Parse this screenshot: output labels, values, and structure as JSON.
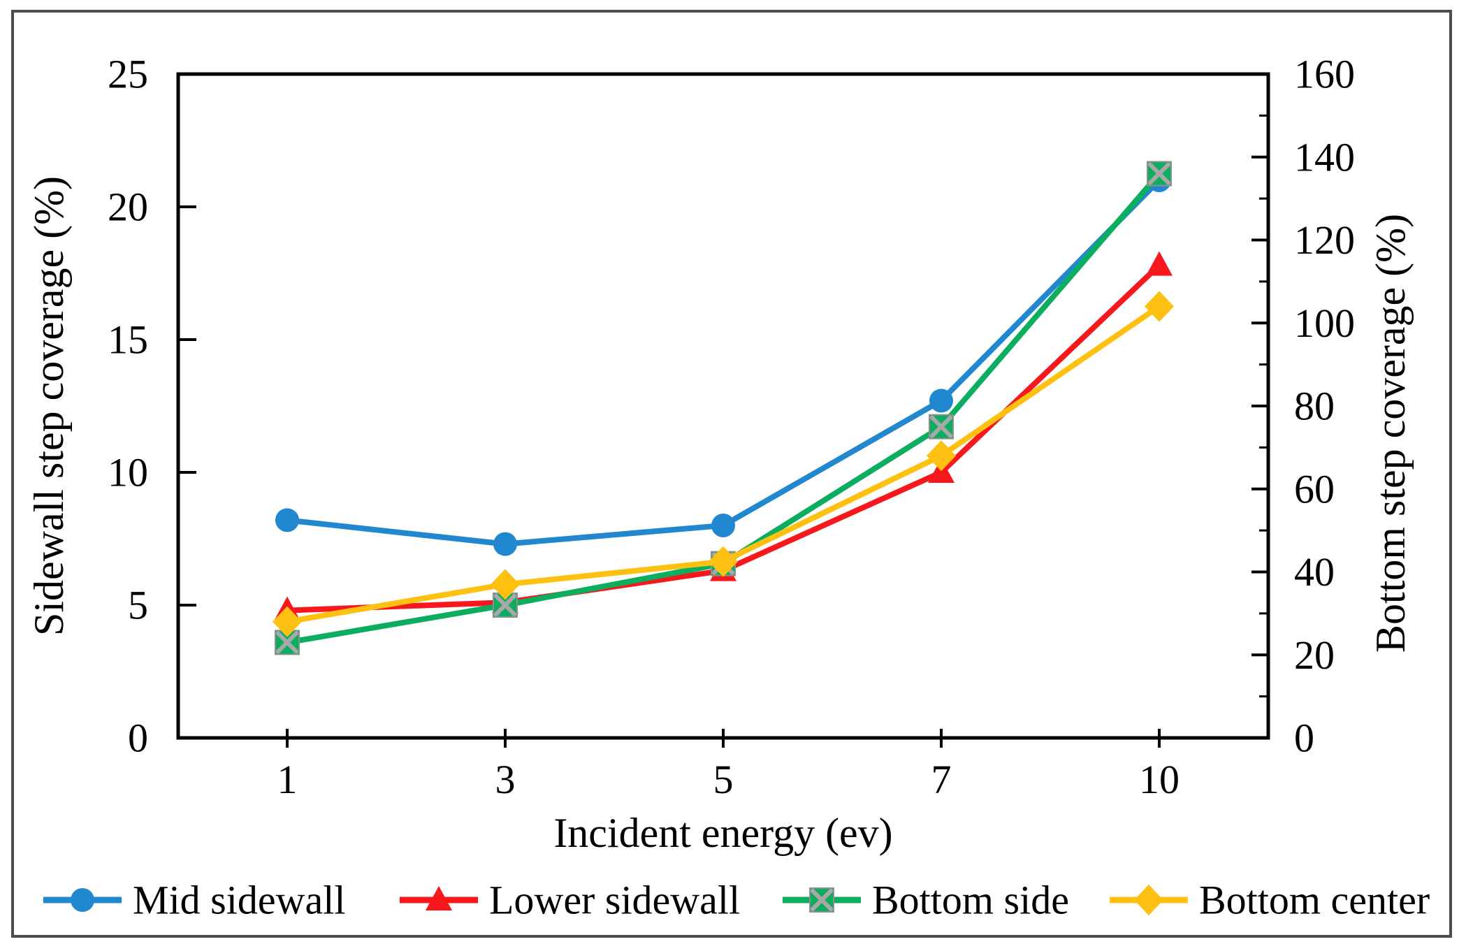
{
  "figure": {
    "background": "#ffffff",
    "border_color": "#4d4d4d"
  },
  "chart_data": {
    "type": "line",
    "title": "",
    "xlabel": "Incident energy (ev)",
    "ylabel_left": "Sidewall step coverage (%)",
    "ylabel_right": "Bottom step coverage (%)",
    "categories": [
      "1",
      "3",
      "5",
      "7",
      "10"
    ],
    "axis_left": {
      "min": 0,
      "max": 25,
      "tick_step": 5,
      "tick_labels": [
        "0",
        "5",
        "10",
        "15",
        "20",
        "25"
      ]
    },
    "axis_right": {
      "min": 0,
      "max": 160,
      "tick_step": 20,
      "minor_tick_step": 10,
      "tick_labels": [
        "0",
        "20",
        "40",
        "60",
        "80",
        "100",
        "120",
        "140",
        "160"
      ]
    },
    "grid": "off",
    "legend_position": "bottom",
    "series": [
      {
        "name": "Mid sidewall",
        "axis": "left",
        "color": "#2188d0",
        "marker": "circle",
        "values": [
          8.2,
          7.3,
          8.0,
          12.7,
          21.0
        ]
      },
      {
        "name": "Lower sidewall",
        "axis": "left",
        "color": "#f7181d",
        "marker": "triangle",
        "values": [
          4.8,
          5.1,
          6.3,
          10.0,
          17.8
        ]
      },
      {
        "name": "Bottom side",
        "axis": "right",
        "color": "#0bad5e",
        "marker": "square-x",
        "marker_x_color": "#a8a8a8",
        "values": [
          23,
          32,
          42,
          75,
          136
        ]
      },
      {
        "name": "Bottom center",
        "axis": "right",
        "color": "#fec111",
        "marker": "diamond",
        "values": [
          28,
          37,
          42.5,
          68,
          104
        ]
      }
    ]
  }
}
